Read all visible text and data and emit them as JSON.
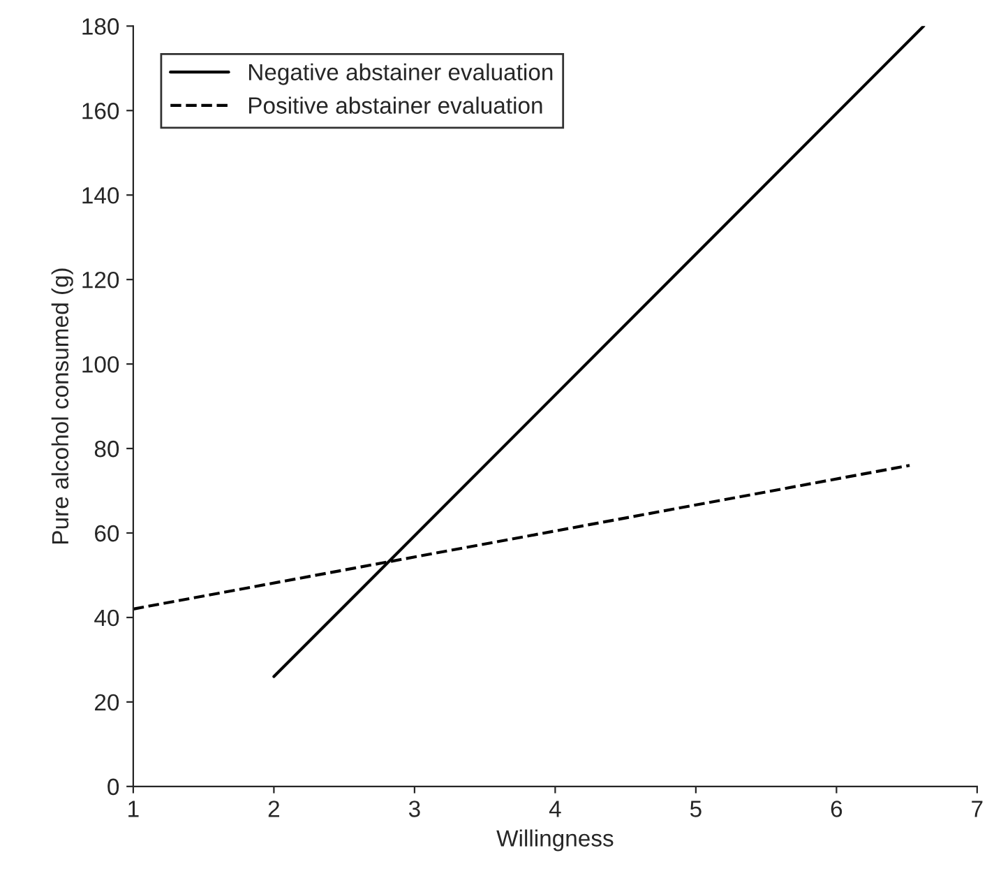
{
  "chart_data": {
    "type": "line",
    "xlabel": "Willingness",
    "ylabel": "Pure alcohol consumed (g)",
    "series": [
      {
        "name": "Negative abstainer evaluation",
        "color": "#000000",
        "x": [
          2,
          6.62
        ],
        "values": [
          26,
          180
        ],
        "line_style": "solid"
      },
      {
        "name": "Positive abstainer evaluation",
        "color": "#000000",
        "x": [
          1,
          6.52
        ],
        "values": [
          42,
          76
        ],
        "line_style": "dashed"
      }
    ],
    "xlim": [
      1,
      7
    ],
    "xticks": [
      1,
      2,
      3,
      4,
      5,
      6,
      7
    ],
    "ylim": [
      0,
      180
    ],
    "yticks": [
      0,
      20,
      40,
      60,
      80,
      100,
      120,
      140,
      160,
      180
    ],
    "grid": false,
    "legend": "top left",
    "marker": "none"
  }
}
